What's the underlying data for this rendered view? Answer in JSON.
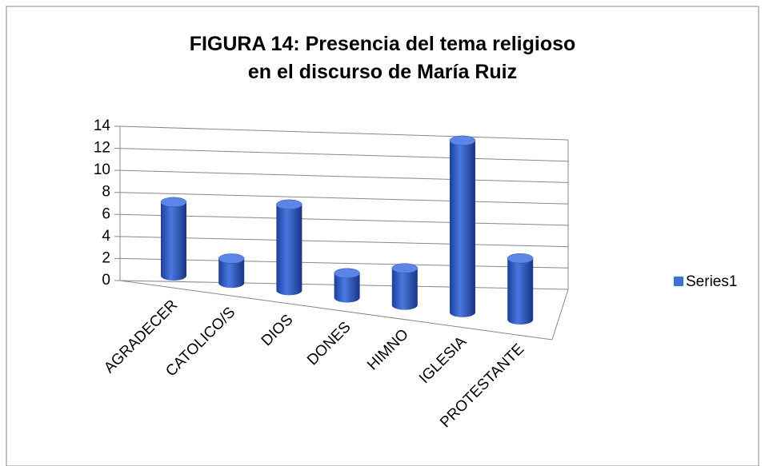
{
  "chart_data": {
    "type": "bar3d",
    "title": "FIGURA 14: Presencia del tema religioso en el discurso de María Ruiz",
    "categories": [
      "AGRADECER",
      "CATOLICO/S",
      "DIOS",
      "DONES",
      "HIMNO",
      "IGLESIA",
      "PROTESTANTE"
    ],
    "series": [
      {
        "name": "Series1",
        "color": "#4472c4",
        "values": [
          6,
          2,
          7,
          2,
          3,
          14,
          5
        ]
      }
    ],
    "ylim": [
      0,
      14
    ],
    "yticks": [
      0,
      2,
      4,
      6,
      8,
      10,
      12,
      14
    ],
    "grid": true,
    "legend": "right"
  }
}
